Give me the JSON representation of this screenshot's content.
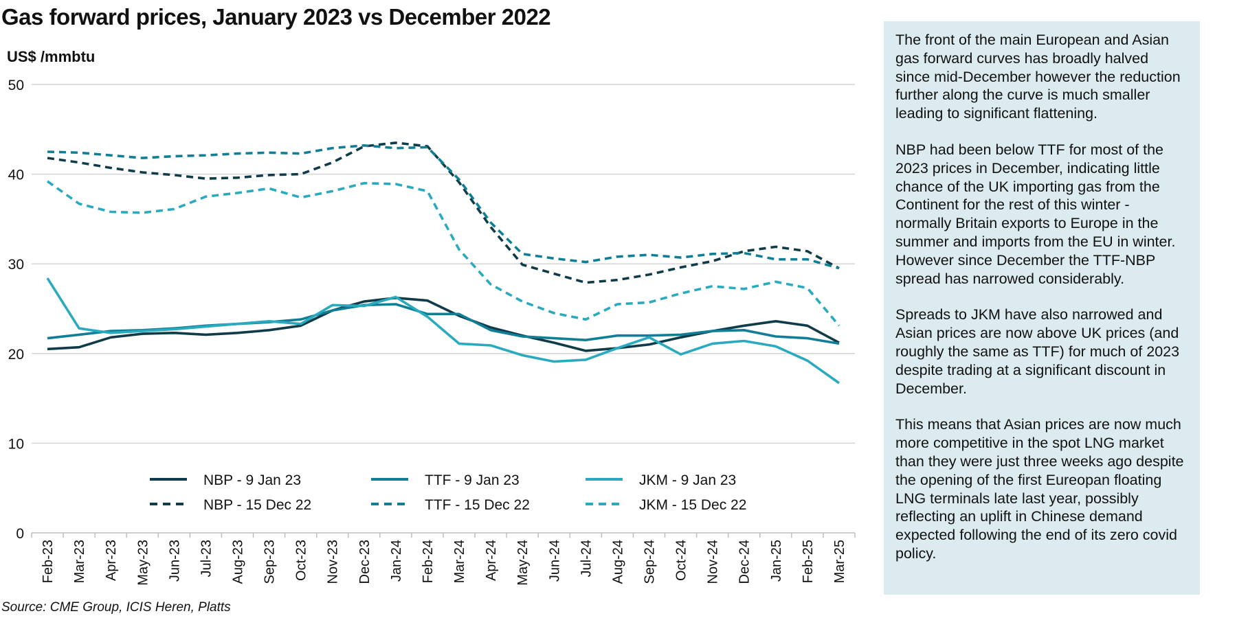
{
  "title": "Gas forward prices, January 2023 vs December 2022",
  "source": "Source: CME Group, ICIS Heren, Platts",
  "colors": {
    "dark": "#0f3c48",
    "medium": "#107f96",
    "light": "#2aaabf",
    "grid": "#d4d4d4",
    "panel_background": "#dcebef"
  },
  "chart_data": {
    "type": "line",
    "ylabel": "US$ /mmbtu",
    "xlabel": "",
    "ylim": [
      0,
      50
    ],
    "yticks": [
      0,
      10,
      20,
      30,
      40,
      50
    ],
    "grid": true,
    "legend_position": "lower-center",
    "categories": [
      "Feb-23",
      "Mar-23",
      "Apr-23",
      "May-23",
      "Jun-23",
      "Jul-23",
      "Aug-23",
      "Sep-23",
      "Oct-23",
      "Nov-23",
      "Dec-23",
      "Jan-24",
      "Feb-24",
      "Mar-24",
      "Apr-24",
      "May-24",
      "Jun-24",
      "Jul-24",
      "Aug-24",
      "Sep-24",
      "Oct-24",
      "Nov-24",
      "Dec-24",
      "Jan-25",
      "Feb-25",
      "Mar-25"
    ],
    "series": [
      {
        "name": "NBP - 9 Jan 23",
        "color": "#0f3c48",
        "dashed": false,
        "values": [
          20.5,
          20.7,
          21.8,
          22.2,
          22.3,
          22.1,
          22.3,
          22.6,
          23.1,
          24.8,
          25.8,
          26.2,
          25.9,
          24.2,
          22.9,
          22.0,
          21.2,
          20.3,
          20.6,
          21.0,
          21.8,
          22.5,
          23.1,
          23.6,
          23.1,
          21.2
        ]
      },
      {
        "name": "TTF - 9 Jan 23",
        "color": "#107f96",
        "dashed": false,
        "values": [
          21.7,
          22.1,
          22.5,
          22.6,
          22.8,
          23.1,
          23.3,
          23.5,
          23.8,
          24.8,
          25.4,
          25.5,
          24.4,
          24.4,
          22.6,
          21.9,
          21.7,
          21.5,
          22.0,
          22.0,
          22.1,
          22.5,
          22.6,
          21.9,
          21.7,
          21.1
        ]
      },
      {
        "name": "JKM - 9 Jan 23",
        "color": "#2aaabf",
        "dashed": false,
        "values": [
          28.4,
          22.8,
          22.3,
          22.5,
          22.7,
          23.0,
          23.3,
          23.6,
          23.3,
          25.4,
          25.3,
          26.3,
          24.1,
          21.1,
          20.9,
          19.8,
          19.1,
          19.3,
          20.6,
          21.8,
          19.9,
          21.1,
          21.4,
          20.8,
          19.2,
          16.7
        ]
      },
      {
        "name": "NBP - 15 Dec 22",
        "color": "#0f3c48",
        "dashed": true,
        "values": [
          41.8,
          41.3,
          40.7,
          40.2,
          39.9,
          39.5,
          39.6,
          39.9,
          40.0,
          41.3,
          43.1,
          43.5,
          43.1,
          39.1,
          34.1,
          29.9,
          28.9,
          27.9,
          28.2,
          28.8,
          29.6,
          30.3,
          31.4,
          31.9,
          31.4,
          29.5
        ]
      },
      {
        "name": "TTF - 15 Dec 22",
        "color": "#107f96",
        "dashed": true,
        "values": [
          42.5,
          42.4,
          42.1,
          41.8,
          42.0,
          42.1,
          42.3,
          42.4,
          42.3,
          42.9,
          43.2,
          42.9,
          43.0,
          39.4,
          34.6,
          31.1,
          30.6,
          30.2,
          30.8,
          31.0,
          30.7,
          31.1,
          31.2,
          30.5,
          30.5,
          29.5
        ]
      },
      {
        "name": "JKM - 15 Dec 22",
        "color": "#2aaabf",
        "dashed": true,
        "values": [
          39.2,
          36.7,
          35.8,
          35.7,
          36.1,
          37.5,
          37.9,
          38.4,
          37.4,
          38.1,
          39.0,
          38.9,
          38.1,
          31.6,
          27.7,
          25.8,
          24.5,
          23.8,
          25.5,
          25.7,
          26.7,
          27.5,
          27.2,
          28.0,
          27.3,
          23.1
        ]
      }
    ]
  },
  "commentary": [
    "The front of the main European and Asian gas forward curves has broadly halved since mid-December however the reduction further along the curve is much smaller leading to significant flattening.",
    "NBP had been below TTF for most of the 2023 prices in December, indicating little chance of the UK importing gas from the Continent for the rest of this winter - normally Britain exports to Europe in the summer and imports from the EU in winter. However since December the TTF-NBP spread has narrowed considerably.",
    "Spreads to JKM have also narrowed and Asian prices are now above UK prices (and roughly the same as TTF) for much of 2023 despite trading at a significant discount in December.",
    "This means that Asian prices are now much more competitive in the spot LNG market than they were just three weeks ago despite the opening of the first Eureopan floating LNG terminals late last year, possibly reflecting an uplift in Chinese demand expected following the end of its zero covid policy."
  ]
}
